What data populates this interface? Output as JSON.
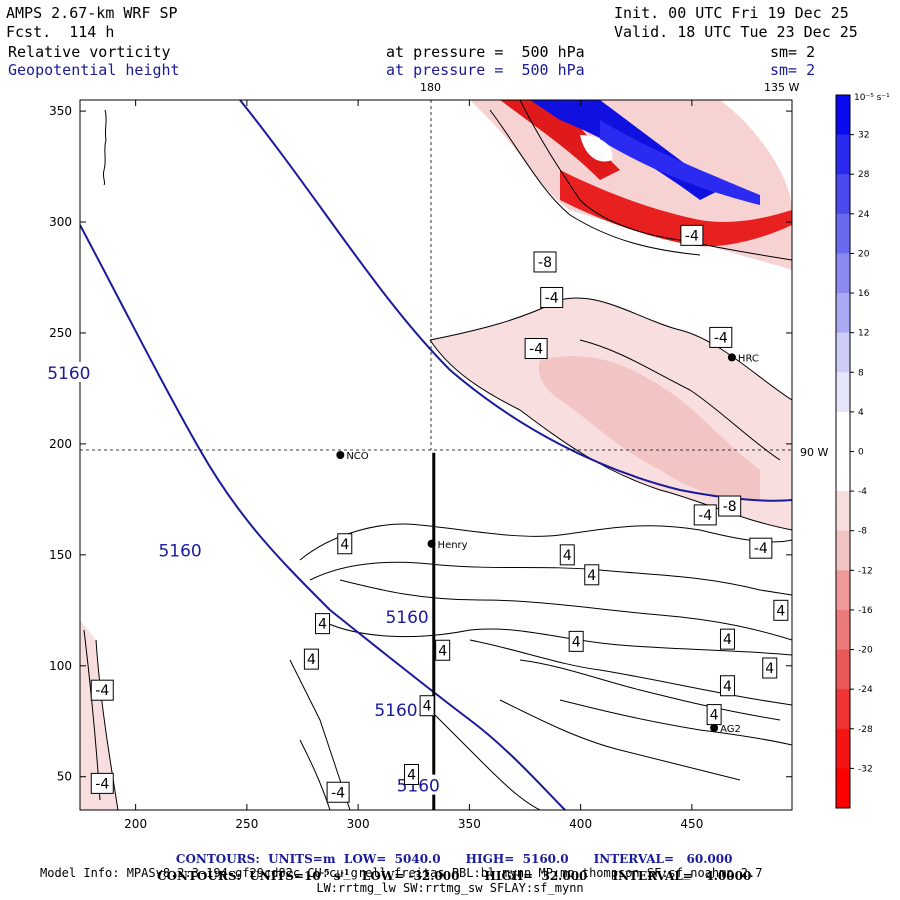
{
  "header": {
    "model": "AMPS 2.67-km WRF SP",
    "forecast": "Fcst.  114 h",
    "init": "Init. 00 UTC Fri 19 Dec 25",
    "valid": "Valid. 18 UTC Tue 23 Dec 25",
    "field1_name": "Relative vorticity",
    "field1_level": "at pressure =  500 hPa",
    "field1_smooth": "sm= 2",
    "field2_name": "Geopotential height",
    "field2_level": "at pressure =  500 hPa",
    "field2_smooth": "sm= 2"
  },
  "map_labels": {
    "meridian_180": "180",
    "meridian_135w": "135 W",
    "meridian_90w": "90 W",
    "stations": [
      {
        "name": "NCO",
        "x": 292,
        "y": 195
      },
      {
        "name": "Henry",
        "x": 333,
        "y": 155
      },
      {
        "name": "HRC",
        "x": 468,
        "y": 239
      },
      {
        "name": "AG2",
        "x": 460,
        "y": 72
      }
    ]
  },
  "chart_data": {
    "type": "contour",
    "title": "Relative vorticity and Geopotential height at 500 hPa",
    "x_range": [
      175,
      495
    ],
    "y_range": [
      35,
      355
    ],
    "x_ticks": [
      200,
      250,
      300,
      350,
      400,
      450
    ],
    "y_ticks": [
      50,
      100,
      150,
      200,
      250,
      300,
      350
    ],
    "geopotential_height": {
      "units": "m",
      "low": 5040.0,
      "high": 5160.0,
      "interval": 60.0,
      "contour_label": "5160",
      "label_positions": [
        [
          170,
          232
        ],
        [
          220,
          152
        ],
        [
          322,
          122
        ],
        [
          317,
          80
        ],
        [
          327,
          46
        ]
      ]
    },
    "relative_vorticity": {
      "units": "10^-5 s^-1",
      "low": -32.0,
      "high": 32.0,
      "interval": 4.0,
      "labels": [
        {
          "v": "4",
          "x": 294,
          "y": 155
        },
        {
          "v": "4",
          "x": 284,
          "y": 119
        },
        {
          "v": "4",
          "x": 279,
          "y": 103
        },
        {
          "v": "4",
          "x": 338,
          "y": 107
        },
        {
          "v": "4",
          "x": 331,
          "y": 82
        },
        {
          "v": "4",
          "x": 324,
          "y": 51
        },
        {
          "v": "4",
          "x": 394,
          "y": 150
        },
        {
          "v": "4",
          "x": 405,
          "y": 141
        },
        {
          "v": "4",
          "x": 398,
          "y": 111
        },
        {
          "v": "4",
          "x": 466,
          "y": 112
        },
        {
          "v": "4",
          "x": 485,
          "y": 99
        },
        {
          "v": "4",
          "x": 466,
          "y": 91
        },
        {
          "v": "4",
          "x": 460,
          "y": 78
        },
        {
          "v": "4",
          "x": 490,
          "y": 125
        },
        {
          "v": "-4",
          "x": 185,
          "y": 89
        },
        {
          "v": "-4",
          "x": 185,
          "y": 47
        },
        {
          "v": "-4",
          "x": 291,
          "y": 43
        },
        {
          "v": "-4",
          "x": 456,
          "y": 168
        },
        {
          "v": "-4",
          "x": 481,
          "y": 153
        },
        {
          "v": "-4",
          "x": 380,
          "y": 243
        },
        {
          "v": "-4",
          "x": 463,
          "y": 248
        },
        {
          "v": "-4",
          "x": 387,
          "y": 266
        },
        {
          "v": "-4",
          "x": 450,
          "y": 294
        },
        {
          "v": "-8",
          "x": 467,
          "y": 172
        },
        {
          "v": "-8",
          "x": 384,
          "y": 282
        }
      ]
    },
    "cross_section_line": {
      "x": 334,
      "y_from": 35,
      "y_to": 196
    }
  },
  "colorbar": {
    "units": "10⁻⁵ s⁻¹",
    "levels": [
      32,
      28,
      24,
      20,
      16,
      12,
      8,
      4,
      0,
      -4,
      -8,
      -12,
      -16,
      -20,
      -24,
      -28,
      -32
    ],
    "colors": [
      "#0a0aee",
      "#2a2aee",
      "#4a4aee",
      "#6a6aee",
      "#8a8af0",
      "#aaaaf4",
      "#cdcdf8",
      "#e6e6fb",
      "#ffffff",
      "#ffffff",
      "#f6dede",
      "#f2c4c4",
      "#ee9a9a",
      "#ec7a7a",
      "#ea5858",
      "#ee3434",
      "#f51414",
      "#ff0000"
    ]
  },
  "footer": {
    "line1_a": "CONTOURS:  UNITS=m  LOW=  5040.0",
    "line1_b": "HIGH=  5160.0",
    "line1_c": "INTERVAL=   60.000",
    "line2_a": "CONTOURS:  UNITS=10",
    "line2_sup": "-5",
    "line2_b": " s",
    "line2_sup2": "-1",
    "line2_c": "   LOW= -32.000",
    "line2_d": "HIGH=  32.000",
    "line2_e": "INTERVAL=   4.0000",
    "line3": "Model Info: MPASv8.2.3-194-gf29cd82c CU:cu_grell_freitas PBL:bl_mynn MP:mp_thompson SF:sf_noahmp 2.7",
    "line4": "LW:rrtmg_lw SW:rrtmg_sw SFLAY:sf_mynn"
  }
}
